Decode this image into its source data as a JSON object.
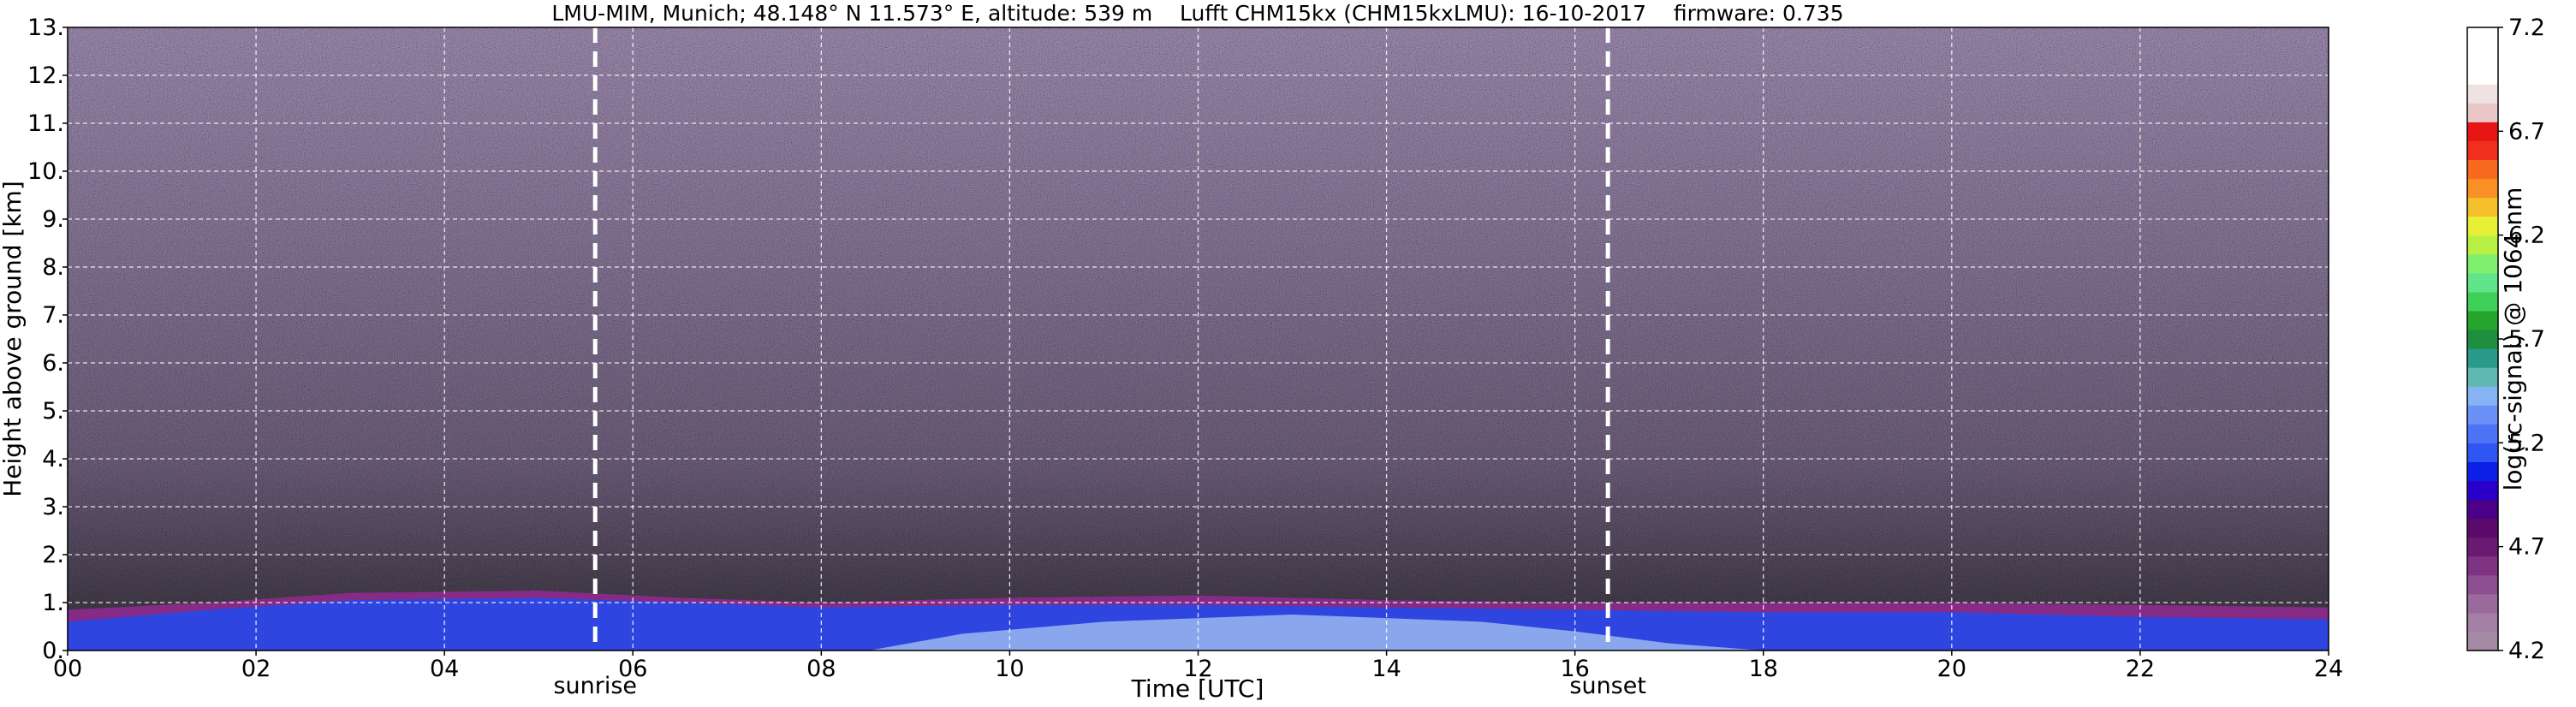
{
  "chart_data": {
    "type": "heatmap",
    "title": "LMU-MIM, Munich; 48.148° N 11.573° E, altitude: 539 m    Lufft CHM15kx (CHM15kxLMU): 16-10-2017    firmware: 0.735",
    "xlabel": "Time [UTC]",
    "ylabel": "Height above ground [km]",
    "xlim": [
      0,
      24
    ],
    "ylim": [
      0,
      13
    ],
    "x_ticks": [
      "00",
      "02",
      "04",
      "06",
      "08",
      "10",
      "12",
      "14",
      "16",
      "18",
      "20",
      "22",
      "24"
    ],
    "y_ticks": [
      "0.",
      "1.",
      "2.",
      "3.",
      "4.",
      "5.",
      "6.",
      "7.",
      "8.",
      "9.",
      "10.",
      "11.",
      "12.",
      "13."
    ],
    "grid": true,
    "annotations": [
      {
        "label": "sunrise",
        "x": 5.6
      },
      {
        "label": "sunset",
        "x": 16.35
      }
    ],
    "colorbar": {
      "label": "log(rc-signal) @ 1064 nm",
      "min": 4.2,
      "max": 7.2,
      "ticks": [
        "4.2",
        "4.7",
        "5.2",
        "5.7",
        "6.2",
        "6.7",
        "7.2"
      ],
      "colors": [
        "#a58aa5",
        "#a47fa5",
        "#9a6a9c",
        "#8e4f90",
        "#7d3282",
        "#6b1a74",
        "#5c0a6a",
        "#4a0088",
        "#2a00c8",
        "#0b1fe6",
        "#2f55f2",
        "#4d73f7",
        "#6b90f8",
        "#85b3f4",
        "#5fb8b2",
        "#2a9a8a",
        "#1f8f3f",
        "#24a62d",
        "#3fd05a",
        "#62e58a",
        "#7ff06e",
        "#b8f046",
        "#e8f035",
        "#f6c02a",
        "#f89025",
        "#f86a20",
        "#f0301c",
        "#e81515",
        "#e9c7c9",
        "#f0e2e3",
        "#ffffff",
        "#ffffff",
        "#ffffff"
      ]
    },
    "boundary_layer": {
      "top_km": [
        [
          0,
          0.85
        ],
        [
          1.5,
          1.0
        ],
        [
          3,
          1.2
        ],
        [
          5,
          1.25
        ],
        [
          6.5,
          1.1
        ],
        [
          8,
          1.0
        ],
        [
          10,
          1.1
        ],
        [
          12,
          1.15
        ],
        [
          14,
          1.05
        ],
        [
          16,
          1.0
        ],
        [
          18,
          1.0
        ],
        [
          20,
          1.0
        ],
        [
          22,
          0.95
        ],
        [
          24,
          0.9
        ]
      ],
      "blue_top_km": [
        [
          0,
          0.6
        ],
        [
          1.5,
          0.85
        ],
        [
          3,
          1.05
        ],
        [
          5,
          1.1
        ],
        [
          6.5,
          1.0
        ],
        [
          8,
          0.9
        ],
        [
          10,
          0.95
        ],
        [
          12,
          0.95
        ],
        [
          14,
          0.9
        ],
        [
          16,
          0.85
        ],
        [
          18,
          0.8
        ],
        [
          20,
          0.8
        ],
        [
          22,
          0.7
        ],
        [
          24,
          0.65
        ]
      ],
      "light_top_km": [
        [
          8.5,
          0.0
        ],
        [
          9.5,
          0.35
        ],
        [
          11,
          0.6
        ],
        [
          13,
          0.75
        ],
        [
          15,
          0.6
        ],
        [
          16,
          0.4
        ],
        [
          17,
          0.15
        ],
        [
          18,
          0.0
        ]
      ]
    }
  }
}
